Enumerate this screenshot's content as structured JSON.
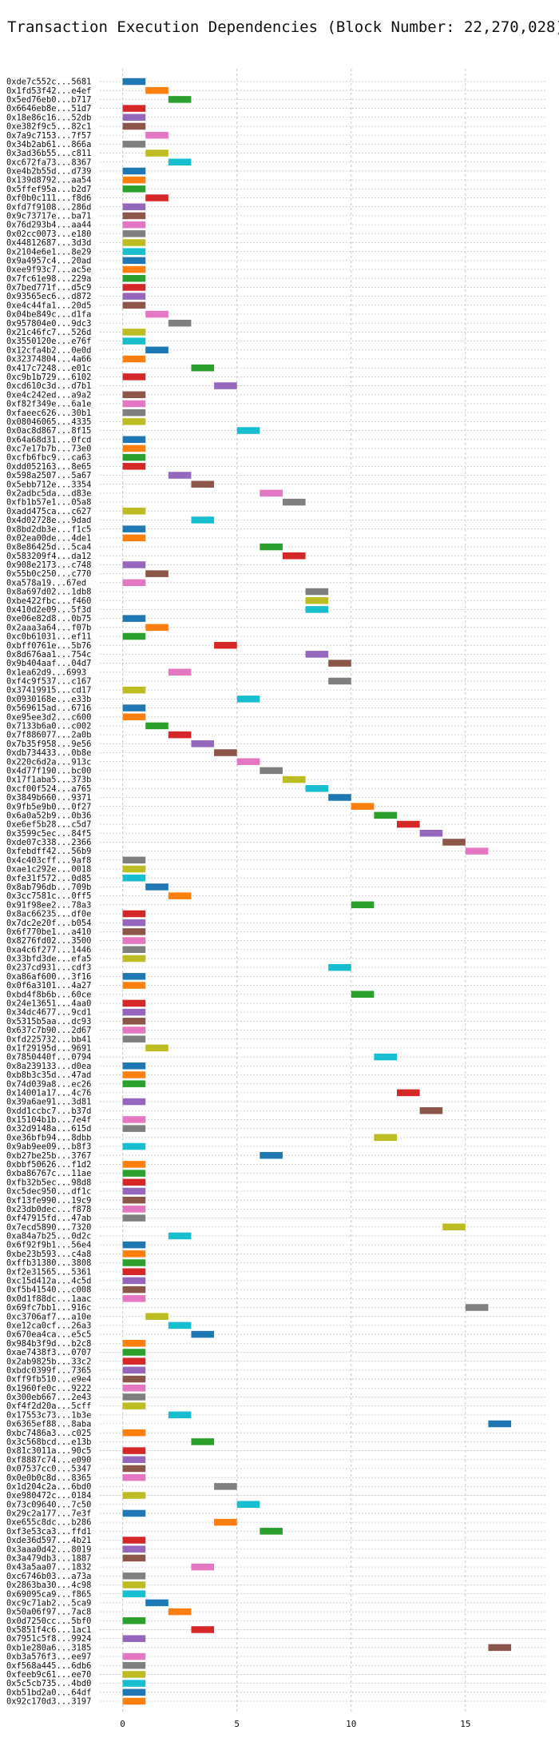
{
  "chart_data": {
    "type": "bar",
    "orientation": "horizontal",
    "title": "Transaction Execution Dependencies (Block Number: 22,270,028)",
    "xlabel": "",
    "ylabel": "",
    "xlim": [
      -1,
      18.5
    ],
    "x_ticks": [
      0,
      5,
      10,
      15
    ],
    "grid": true,
    "legend": "none",
    "bar_width": 1,
    "palette": [
      "#1f77b4",
      "#ff7f0e",
      "#2ca02c",
      "#d62728",
      "#9467bd",
      "#8c564b",
      "#e377c2",
      "#7f7f7f",
      "#bcbd22",
      "#17becf"
    ],
    "transactions": [
      {
        "label": "0xde7c552c...5681",
        "start": 0,
        "color": "#1f77b4"
      },
      {
        "label": "0x1fd53f42...e4ef",
        "start": 1,
        "color": "#ff7f0e"
      },
      {
        "label": "0x5ed76eb0...b717",
        "start": 2,
        "color": "#2ca02c"
      },
      {
        "label": "0x6646eb8e...51d7",
        "start": 0,
        "color": "#d62728"
      },
      {
        "label": "0x18e86c16...52db",
        "start": 0,
        "color": "#9467bd"
      },
      {
        "label": "0xe382f9c5...82c1",
        "start": 0,
        "color": "#8c564b"
      },
      {
        "label": "0x7a9c7153...7f57",
        "start": 1,
        "color": "#e377c2"
      },
      {
        "label": "0x34b2ab61...866a",
        "start": 0,
        "color": "#7f7f7f"
      },
      {
        "label": "0x3ad36b55...c811",
        "start": 1,
        "color": "#bcbd22"
      },
      {
        "label": "0xc672fa73...8367",
        "start": 2,
        "color": "#17becf"
      },
      {
        "label": "0xe4b2b55d...d739",
        "start": 0,
        "color": "#1f77b4"
      },
      {
        "label": "0x139d8792...aa54",
        "start": 0,
        "color": "#ff7f0e"
      },
      {
        "label": "0x5ffef95a...b2d7",
        "start": 0,
        "color": "#2ca02c"
      },
      {
        "label": "0xf0b0c111...f8d6",
        "start": 1,
        "color": "#d62728"
      },
      {
        "label": "0xfd7f9108...286d",
        "start": 0,
        "color": "#9467bd"
      },
      {
        "label": "0x9c73717e...ba71",
        "start": 0,
        "color": "#8c564b"
      },
      {
        "label": "0x76d293b4...aa44",
        "start": 0,
        "color": "#e377c2"
      },
      {
        "label": "0x02cc0073...e180",
        "start": 0,
        "color": "#7f7f7f"
      },
      {
        "label": "0x44812687...3d3d",
        "start": 0,
        "color": "#bcbd22"
      },
      {
        "label": "0x2104e6e1...8e29",
        "start": 0,
        "color": "#17becf"
      },
      {
        "label": "0x9a4957c4...20ad",
        "start": 0,
        "color": "#1f77b4"
      },
      {
        "label": "0xee9f93c7...ac5e",
        "start": 0,
        "color": "#ff7f0e"
      },
      {
        "label": "0x7fc61e98...229a",
        "start": 0,
        "color": "#2ca02c"
      },
      {
        "label": "0x7bed771f...d5c9",
        "start": 0,
        "color": "#d62728"
      },
      {
        "label": "0x93565ec6...d872",
        "start": 0,
        "color": "#9467bd"
      },
      {
        "label": "0xe4c44fa1...20d5",
        "start": 0,
        "color": "#8c564b"
      },
      {
        "label": "0x04be849c...d1fa",
        "start": 1,
        "color": "#e377c2"
      },
      {
        "label": "0x957804e0...9dc3",
        "start": 2,
        "color": "#7f7f7f"
      },
      {
        "label": "0x21c46fc7...526d",
        "start": 0,
        "color": "#bcbd22"
      },
      {
        "label": "0x3550120e...e76f",
        "start": 0,
        "color": "#17becf"
      },
      {
        "label": "0x12cfa4b2...0e0d",
        "start": 1,
        "color": "#1f77b4"
      },
      {
        "label": "0x32374804...4a66",
        "start": 0,
        "color": "#ff7f0e"
      },
      {
        "label": "0x417c7248...e01c",
        "start": 3,
        "color": "#2ca02c"
      },
      {
        "label": "0xc9b1b729...6102",
        "start": 0,
        "color": "#d62728"
      },
      {
        "label": "0xcd610c3d...d7b1",
        "start": 4,
        "color": "#9467bd"
      },
      {
        "label": "0xe4c242ed...a9a2",
        "start": 0,
        "color": "#8c564b"
      },
      {
        "label": "0xf82f349e...6a1e",
        "start": 0,
        "color": "#e377c2"
      },
      {
        "label": "0xfaeec626...30b1",
        "start": 0,
        "color": "#7f7f7f"
      },
      {
        "label": "0x08046065...4335",
        "start": 0,
        "color": "#bcbd22"
      },
      {
        "label": "0x0ac8d867...8f15",
        "start": 5,
        "color": "#17becf"
      },
      {
        "label": "0x64a68d31...0fcd",
        "start": 0,
        "color": "#1f77b4"
      },
      {
        "label": "0xc7e17b7b...73e0",
        "start": 0,
        "color": "#ff7f0e"
      },
      {
        "label": "0xcfb6fbc9...ca63",
        "start": 0,
        "color": "#2ca02c"
      },
      {
        "label": "0xdd052163...8e65",
        "start": 0,
        "color": "#d62728"
      },
      {
        "label": "0x598a2507...5a67",
        "start": 2,
        "color": "#9467bd"
      },
      {
        "label": "0x5ebb712e...3354",
        "start": 3,
        "color": "#8c564b"
      },
      {
        "label": "0x2adbc5da...d83e",
        "start": 6,
        "color": "#e377c2"
      },
      {
        "label": "0xfb1b57e1...05a8",
        "start": 7,
        "color": "#7f7f7f"
      },
      {
        "label": "0xadd475ca...c627",
        "start": 0,
        "color": "#bcbd22"
      },
      {
        "label": "0x4d02728e...9dad",
        "start": 3,
        "color": "#17becf"
      },
      {
        "label": "0x8bd2db3e...f1c5",
        "start": 0,
        "color": "#1f77b4"
      },
      {
        "label": "0x02ea00de...4de1",
        "start": 0,
        "color": "#ff7f0e"
      },
      {
        "label": "0x8e86425d...5ca4",
        "start": 6,
        "color": "#2ca02c"
      },
      {
        "label": "0x583209f4...da12",
        "start": 7,
        "color": "#d62728"
      },
      {
        "label": "0x908e2173...c748",
        "start": 0,
        "color": "#9467bd"
      },
      {
        "label": "0x55b0c250...c770",
        "start": 1,
        "color": "#8c564b"
      },
      {
        "label": "0xa578a19...67ed",
        "start": 0,
        "color": "#e377c2"
      },
      {
        "label": "0x8a697d02...1db8",
        "start": 8,
        "color": "#7f7f7f"
      },
      {
        "label": "0xbe422fbc...f460",
        "start": 8,
        "color": "#bcbd22"
      },
      {
        "label": "0x410d2e09...5f3d",
        "start": 8,
        "color": "#17becf"
      },
      {
        "label": "0xe06e82d8...0b75",
        "start": 0,
        "color": "#1f77b4"
      },
      {
        "label": "0x2aaa3a64...f07b",
        "start": 1,
        "color": "#ff7f0e"
      },
      {
        "label": "0xc0b61031...ef11",
        "start": 0,
        "color": "#2ca02c"
      },
      {
        "label": "0xbff0761e...5b76",
        "start": 4,
        "color": "#d62728"
      },
      {
        "label": "0x8d676aa1...754c",
        "start": 8,
        "color": "#9467bd"
      },
      {
        "label": "0x9b404aaf...04d7",
        "start": 9,
        "color": "#8c564b"
      },
      {
        "label": "0x1ea62d9...6993",
        "start": 2,
        "color": "#e377c2"
      },
      {
        "label": "0xf4c9f537...c167",
        "start": 9,
        "color": "#7f7f7f"
      },
      {
        "label": "0x37419915...cd17",
        "start": 0,
        "color": "#bcbd22"
      },
      {
        "label": "0x0930168e...e33b",
        "start": 5,
        "color": "#17becf"
      },
      {
        "label": "0x569615ad...6716",
        "start": 0,
        "color": "#1f77b4"
      },
      {
        "label": "0xe95ee3d2...c600",
        "start": 0,
        "color": "#ff7f0e"
      },
      {
        "label": "0x7133b6a0...c002",
        "start": 1,
        "color": "#2ca02c"
      },
      {
        "label": "0x7f886077...2a0b",
        "start": 2,
        "color": "#d62728"
      },
      {
        "label": "0x7b35f958...9e56",
        "start": 3,
        "color": "#9467bd"
      },
      {
        "label": "0xdb734433...0b8e",
        "start": 4,
        "color": "#8c564b"
      },
      {
        "label": "0x220c6d2a...913c",
        "start": 5,
        "color": "#e377c2"
      },
      {
        "label": "0x4d77f190...bc00",
        "start": 6,
        "color": "#7f7f7f"
      },
      {
        "label": "0x17f1aba5...373b",
        "start": 7,
        "color": "#bcbd22"
      },
      {
        "label": "0xcf00f524...a765",
        "start": 8,
        "color": "#17becf"
      },
      {
        "label": "0x3849b660...9371",
        "start": 9,
        "color": "#1f77b4"
      },
      {
        "label": "0x9fb5e9b0...0f27",
        "start": 10,
        "color": "#ff7f0e"
      },
      {
        "label": "0x6a0a52b9...0b36",
        "start": 11,
        "color": "#2ca02c"
      },
      {
        "label": "0xe6ef5b28...c5d7",
        "start": 12,
        "color": "#d62728"
      },
      {
        "label": "0x3599c5ec...84f5",
        "start": 13,
        "color": "#9467bd"
      },
      {
        "label": "0xde07c338...2366",
        "start": 14,
        "color": "#8c564b"
      },
      {
        "label": "0xfebdff42...56b9",
        "start": 15,
        "color": "#e377c2"
      },
      {
        "label": "0x4c403cff...9af8",
        "start": 0,
        "color": "#7f7f7f"
      },
      {
        "label": "0xae1c292e...0018",
        "start": 0,
        "color": "#bcbd22"
      },
      {
        "label": "0xfe31f572...0d85",
        "start": 0,
        "color": "#17becf"
      },
      {
        "label": "0x8ab796db...709b",
        "start": 1,
        "color": "#1f77b4"
      },
      {
        "label": "0x3cc7581c...0ff5",
        "start": 2,
        "color": "#ff7f0e"
      },
      {
        "label": "0x91f98ee2...78a3",
        "start": 10,
        "color": "#2ca02c"
      },
      {
        "label": "0x8ac66235...df0e",
        "start": 0,
        "color": "#d62728"
      },
      {
        "label": "0x7dc2e20f...b054",
        "start": 0,
        "color": "#9467bd"
      },
      {
        "label": "0x6f770be1...a410",
        "start": 0,
        "color": "#8c564b"
      },
      {
        "label": "0x8276fd02...3500",
        "start": 0,
        "color": "#e377c2"
      },
      {
        "label": "0xa4c6f277...1446",
        "start": 0,
        "color": "#7f7f7f"
      },
      {
        "label": "0x33bfd3de...efa5",
        "start": 0,
        "color": "#bcbd22"
      },
      {
        "label": "0x237cd931...cdf3",
        "start": 9,
        "color": "#17becf"
      },
      {
        "label": "0xa86af600...3f16",
        "start": 0,
        "color": "#1f77b4"
      },
      {
        "label": "0x0f6a3101...4a27",
        "start": 0,
        "color": "#ff7f0e"
      },
      {
        "label": "0xbd4f8b6b...60ce",
        "start": 10,
        "color": "#2ca02c"
      },
      {
        "label": "0x24e13651...4aa0",
        "start": 0,
        "color": "#d62728"
      },
      {
        "label": "0x34dc4677...9cd1",
        "start": 0,
        "color": "#9467bd"
      },
      {
        "label": "0x5315b5aa...dc93",
        "start": 0,
        "color": "#8c564b"
      },
      {
        "label": "0x637c7b90...2d67",
        "start": 0,
        "color": "#e377c2"
      },
      {
        "label": "0xfd225732...bb41",
        "start": 0,
        "color": "#7f7f7f"
      },
      {
        "label": "0x1f29195d...9691",
        "start": 1,
        "color": "#bcbd22"
      },
      {
        "label": "0x7850440f...0794",
        "start": 11,
        "color": "#17becf"
      },
      {
        "label": "0x8a239133...d0ea",
        "start": 0,
        "color": "#1f77b4"
      },
      {
        "label": "0xb8b3c35d...47ad",
        "start": 0,
        "color": "#ff7f0e"
      },
      {
        "label": "0x74d039a8...ec26",
        "start": 0,
        "color": "#2ca02c"
      },
      {
        "label": "0x14001a17...4c76",
        "start": 12,
        "color": "#d62728"
      },
      {
        "label": "0x39a6ae91...3d81",
        "start": 0,
        "color": "#9467bd"
      },
      {
        "label": "0xdd1ccbc7...b37d",
        "start": 13,
        "color": "#8c564b"
      },
      {
        "label": "0x15104b1b...7e4f",
        "start": 0,
        "color": "#e377c2"
      },
      {
        "label": "0x32d9148a...615d",
        "start": 0,
        "color": "#7f7f7f"
      },
      {
        "label": "0xe36bfb94...8dbb",
        "start": 11,
        "color": "#bcbd22"
      },
      {
        "label": "0x9ab9ee09...b8f3",
        "start": 0,
        "color": "#17becf"
      },
      {
        "label": "0xb27be25b...3767",
        "start": 6,
        "color": "#1f77b4"
      },
      {
        "label": "0xbbf50626...f1d2",
        "start": 0,
        "color": "#ff7f0e"
      },
      {
        "label": "0xba86767c...11ae",
        "start": 0,
        "color": "#2ca02c"
      },
      {
        "label": "0xfb32b5ec...98d8",
        "start": 0,
        "color": "#d62728"
      },
      {
        "label": "0xc5dec950...df1c",
        "start": 0,
        "color": "#9467bd"
      },
      {
        "label": "0xf13fe990...19c9",
        "start": 0,
        "color": "#8c564b"
      },
      {
        "label": "0x23db0dec...f878",
        "start": 0,
        "color": "#e377c2"
      },
      {
        "label": "0xf47915fd...47ab",
        "start": 0,
        "color": "#7f7f7f"
      },
      {
        "label": "0x7ecd5890...7320",
        "start": 14,
        "color": "#bcbd22"
      },
      {
        "label": "0xa84a7b25...0d2c",
        "start": 2,
        "color": "#17becf"
      },
      {
        "label": "0x6f92f9b1...56e4",
        "start": 0,
        "color": "#1f77b4"
      },
      {
        "label": "0xbe23b593...c4a8",
        "start": 0,
        "color": "#ff7f0e"
      },
      {
        "label": "0xffb31380...3808",
        "start": 0,
        "color": "#2ca02c"
      },
      {
        "label": "0xf2e31565...5361",
        "start": 0,
        "color": "#d62728"
      },
      {
        "label": "0xc15d412a...4c5d",
        "start": 0,
        "color": "#9467bd"
      },
      {
        "label": "0xf5b41540...c008",
        "start": 0,
        "color": "#8c564b"
      },
      {
        "label": "0x0d1f88dc...1aac",
        "start": 0,
        "color": "#e377c2"
      },
      {
        "label": "0x69fc7bb1...916c",
        "start": 15,
        "color": "#7f7f7f"
      },
      {
        "label": "0xc3706af7...a10e",
        "start": 1,
        "color": "#bcbd22"
      },
      {
        "label": "0xe12ca0cf...26a3",
        "start": 2,
        "color": "#17becf"
      },
      {
        "label": "0x670ea4ca...e5c5",
        "start": 3,
        "color": "#1f77b4"
      },
      {
        "label": "0x984b3f9d...b2c8",
        "start": 0,
        "color": "#ff7f0e"
      },
      {
        "label": "0xae7438f3...0707",
        "start": 0,
        "color": "#2ca02c"
      },
      {
        "label": "0x2ab9825b...33c2",
        "start": 0,
        "color": "#d62728"
      },
      {
        "label": "0xbdc0399f...7365",
        "start": 0,
        "color": "#9467bd"
      },
      {
        "label": "0xff9fb510...e9e4",
        "start": 0,
        "color": "#8c564b"
      },
      {
        "label": "0x1960fe0c...9222",
        "start": 0,
        "color": "#e377c2"
      },
      {
        "label": "0x300eb667...2e43",
        "start": 0,
        "color": "#7f7f7f"
      },
      {
        "label": "0xf4f2d20a...5cff",
        "start": 0,
        "color": "#bcbd22"
      },
      {
        "label": "0x17553c73...1b3e",
        "start": 2,
        "color": "#17becf"
      },
      {
        "label": "0x6365ef88...8aba",
        "start": 16,
        "color": "#1f77b4"
      },
      {
        "label": "0xbc7486a3...c025",
        "start": 0,
        "color": "#ff7f0e"
      },
      {
        "label": "0x3c568bcd...e13b",
        "start": 3,
        "color": "#2ca02c"
      },
      {
        "label": "0x81c3011a...90c5",
        "start": 0,
        "color": "#d62728"
      },
      {
        "label": "0xf8887c74...e090",
        "start": 0,
        "color": "#9467bd"
      },
      {
        "label": "0x07537cc0...5347",
        "start": 0,
        "color": "#8c564b"
      },
      {
        "label": "0x0e0b0c8d...8365",
        "start": 0,
        "color": "#e377c2"
      },
      {
        "label": "0x1d204c2a...6bd0",
        "start": 4,
        "color": "#7f7f7f"
      },
      {
        "label": "0xe980472c...0184",
        "start": 0,
        "color": "#bcbd22"
      },
      {
        "label": "0x73c09640...7c50",
        "start": 5,
        "color": "#17becf"
      },
      {
        "label": "0x29c2a177...7e3f",
        "start": 0,
        "color": "#1f77b4"
      },
      {
        "label": "0xe655c8dc...b286",
        "start": 4,
        "color": "#ff7f0e"
      },
      {
        "label": "0xf3e53ca3...ffd1",
        "start": 6,
        "color": "#2ca02c"
      },
      {
        "label": "0xde36d597...4b21",
        "start": 0,
        "color": "#d62728"
      },
      {
        "label": "0x3aaa0d42...8019",
        "start": 0,
        "color": "#9467bd"
      },
      {
        "label": "0x3a479db3...1887",
        "start": 0,
        "color": "#8c564b"
      },
      {
        "label": "0x43a5aa07...1832",
        "start": 3,
        "color": "#e377c2"
      },
      {
        "label": "0xc6746b03...a73a",
        "start": 0,
        "color": "#7f7f7f"
      },
      {
        "label": "0x2863ba30...4c98",
        "start": 0,
        "color": "#bcbd22"
      },
      {
        "label": "0x69095ca9...f865",
        "start": 0,
        "color": "#17becf"
      },
      {
        "label": "0xc9c71ab2...5ca9",
        "start": 1,
        "color": "#1f77b4"
      },
      {
        "label": "0x50a06f97...7ac8",
        "start": 2,
        "color": "#ff7f0e"
      },
      {
        "label": "0x0d7250cc...5bf0",
        "start": 0,
        "color": "#2ca02c"
      },
      {
        "label": "0x5851f4c6...1ac1",
        "start": 3,
        "color": "#d62728"
      },
      {
        "label": "0x7951c5f8...9924",
        "start": 0,
        "color": "#9467bd"
      },
      {
        "label": "0xb1e280a6...3185",
        "start": 16,
        "color": "#8c564b"
      },
      {
        "label": "0xb3a576f3...ee97",
        "start": 0,
        "color": "#e377c2"
      },
      {
        "label": "0xf568a445...6db6",
        "start": 0,
        "color": "#7f7f7f"
      },
      {
        "label": "0xfeeb9c61...ee70",
        "start": 0,
        "color": "#bcbd22"
      },
      {
        "label": "0x5c5cb735...4bd0",
        "start": 0,
        "color": "#17becf"
      },
      {
        "label": "0xb51bd2a0...64df",
        "start": 0,
        "color": "#1f77b4"
      },
      {
        "label": "0x92c170d3...3197",
        "start": 0,
        "color": "#ff7f0e"
      }
    ]
  }
}
